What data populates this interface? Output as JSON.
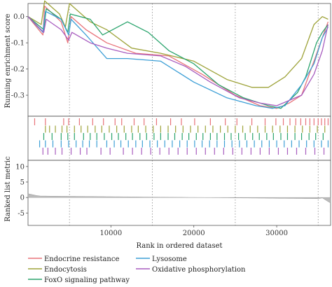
{
  "chart_data": {
    "type": "line",
    "x_range": [
      0,
      36500
    ],
    "grid": "vertical dotted lines at x = 5000, 15000, 25000, 35000",
    "legend_position": "bottom",
    "enrichment_panel": {
      "ylabel": "Running enrichment score",
      "ylim": [
        -0.38,
        0.05
      ],
      "yticks": [
        0.0,
        -0.1,
        -0.2,
        -0.3
      ],
      "ytick_labels": [
        "0.0",
        "-0.1",
        "-0.2",
        "-0.3"
      ]
    },
    "metric_panel": {
      "ylabel": "Ranked list metric",
      "ylim": [
        -9,
        12
      ],
      "yticks": [
        10,
        5,
        0,
        -5
      ],
      "ytick_labels": [
        "10",
        "5",
        "0",
        "-5"
      ]
    },
    "xaxis": {
      "xlabel": "Rank in ordered dataset",
      "xticks": [
        10000,
        20000,
        30000
      ],
      "xtick_labels": [
        "10000",
        "20000",
        "30000"
      ]
    },
    "series": [
      {
        "name": "Endocrine resistance",
        "color": "#e8737a",
        "points": [
          [
            0,
            0
          ],
          [
            1800,
            -0.07
          ],
          [
            2000,
            0.04
          ],
          [
            4000,
            -0.02
          ],
          [
            4800,
            -0.1
          ],
          [
            5200,
            0.0
          ],
          [
            7000,
            -0.05
          ],
          [
            9500,
            -0.1
          ],
          [
            13000,
            -0.14
          ],
          [
            17000,
            -0.15
          ],
          [
            21000,
            -0.22
          ],
          [
            25000,
            -0.3
          ],
          [
            28000,
            -0.34
          ],
          [
            30000,
            -0.35
          ],
          [
            31500,
            -0.33
          ],
          [
            33000,
            -0.3
          ],
          [
            34500,
            -0.17
          ],
          [
            35500,
            -0.08
          ],
          [
            36200,
            -0.02
          ]
        ],
        "hits": [
          800,
          2100,
          4300,
          4900,
          6200,
          7800,
          9100,
          10500,
          11300,
          12800,
          14000,
          15500,
          17200,
          18500,
          20100,
          22000,
          23800,
          25200,
          27000,
          28600,
          29900,
          30800,
          31600,
          32300,
          32900,
          33500,
          34000,
          34500,
          35000,
          35400,
          35800,
          36200
        ]
      },
      {
        "name": "Endocytosis",
        "color": "#9ea33a",
        "points": [
          [
            0,
            0
          ],
          [
            1600,
            -0.03
          ],
          [
            2000,
            0.06
          ],
          [
            3800,
            0.01
          ],
          [
            4500,
            -0.04
          ],
          [
            5000,
            0.05
          ],
          [
            7500,
            -0.02
          ],
          [
            9500,
            -0.05
          ],
          [
            12500,
            -0.12
          ],
          [
            16000,
            -0.14
          ],
          [
            20000,
            -0.17
          ],
          [
            24000,
            -0.24
          ],
          [
            27000,
            -0.27
          ],
          [
            29000,
            -0.27
          ],
          [
            31000,
            -0.23
          ],
          [
            33000,
            -0.16
          ],
          [
            34500,
            -0.03
          ],
          [
            35500,
            0.0
          ],
          [
            36200,
            -0.01
          ]
        ],
        "hits": [
          2100,
          2600,
          3300,
          4100,
          4700,
          5600,
          6400,
          7200,
          8100,
          8900,
          9800,
          10700,
          11600,
          12500,
          13300,
          14200,
          15100,
          16000,
          16900,
          17800,
          18700,
          19600,
          20500,
          21400,
          22300,
          23200,
          24100,
          25000,
          25900,
          26800,
          27700,
          28600,
          29500,
          30400,
          31300,
          32200,
          33100,
          34000,
          34900,
          35800
        ]
      },
      {
        "name": "FoxO signaling pathway",
        "color": "#2aa46d",
        "points": [
          [
            0,
            0
          ],
          [
            1900,
            -0.05
          ],
          [
            2200,
            0.03
          ],
          [
            4000,
            -0.01
          ],
          [
            4800,
            -0.06
          ],
          [
            5100,
            0.01
          ],
          [
            7500,
            -0.01
          ],
          [
            9000,
            -0.07
          ],
          [
            12000,
            -0.02
          ],
          [
            14500,
            -0.06
          ],
          [
            17000,
            -0.13
          ],
          [
            20000,
            -0.18
          ],
          [
            23000,
            -0.26
          ],
          [
            26000,
            -0.31
          ],
          [
            29000,
            -0.34
          ],
          [
            30500,
            -0.35
          ],
          [
            32500,
            -0.29
          ],
          [
            33500,
            -0.23
          ],
          [
            34800,
            -0.1
          ],
          [
            35500,
            -0.06
          ],
          [
            36200,
            -0.03
          ]
        ],
        "hits": [
          1900,
          2900,
          4000,
          4800,
          5600,
          6700,
          7500,
          8300,
          9200,
          10100,
          10900,
          11800,
          12600,
          13500,
          14300,
          15200,
          16000,
          16900,
          17700,
          18600,
          19400,
          20300,
          21100,
          22000,
          22800,
          23700,
          24500,
          25400,
          26200,
          27100,
          27900,
          28800,
          29600,
          30500,
          31300,
          32200,
          33000,
          33900,
          34700,
          35600
        ]
      },
      {
        "name": "Lysosome",
        "color": "#3d9fd6",
        "points": [
          [
            0,
            0
          ],
          [
            1800,
            -0.06
          ],
          [
            2100,
            0.02
          ],
          [
            4000,
            -0.01
          ],
          [
            4900,
            -0.07
          ],
          [
            5200,
            -0.01
          ],
          [
            7000,
            -0.07
          ],
          [
            9500,
            -0.16
          ],
          [
            12000,
            -0.16
          ],
          [
            16000,
            -0.17
          ],
          [
            20000,
            -0.25
          ],
          [
            24000,
            -0.31
          ],
          [
            27500,
            -0.34
          ],
          [
            29500,
            -0.35
          ],
          [
            31000,
            -0.34
          ],
          [
            33000,
            -0.26
          ],
          [
            34500,
            -0.18
          ],
          [
            35500,
            -0.08
          ],
          [
            36200,
            -0.04
          ]
        ],
        "hits": [
          1400,
          2100,
          3000,
          4000,
          4900,
          5800,
          6600,
          7400,
          8300,
          9500,
          10400,
          11200,
          12100,
          13000,
          13800,
          14700,
          15600,
          16500,
          17400,
          18300,
          19200,
          20100,
          21000,
          21900,
          22800,
          23700,
          24600,
          25500,
          26400,
          27300,
          28200,
          29100,
          30000,
          30900,
          31800,
          32700,
          33600,
          34500,
          35400,
          36200
        ]
      },
      {
        "name": "Oxidative phosphorylation",
        "color": "#a85dbf",
        "points": [
          [
            0,
            0
          ],
          [
            1900,
            -0.06
          ],
          [
            2200,
            -0.01
          ],
          [
            4000,
            -0.05
          ],
          [
            4900,
            -0.09
          ],
          [
            5300,
            -0.06
          ],
          [
            7500,
            -0.1
          ],
          [
            9500,
            -0.12
          ],
          [
            12000,
            -0.14
          ],
          [
            16000,
            -0.15
          ],
          [
            19000,
            -0.19
          ],
          [
            22000,
            -0.25
          ],
          [
            25500,
            -0.31
          ],
          [
            28000,
            -0.33
          ],
          [
            30000,
            -0.34
          ],
          [
            31500,
            -0.32
          ],
          [
            33000,
            -0.3
          ],
          [
            34500,
            -0.22
          ],
          [
            35500,
            -0.13
          ],
          [
            36200,
            -0.03
          ]
        ],
        "hits": [
          1800,
          2400,
          3300,
          4100,
          5200,
          6300,
          7100,
          8800,
          9900,
          11500,
          12600,
          13700,
          14800,
          15900,
          17000,
          18100,
          19200,
          20300,
          21400,
          22500,
          23600,
          24700,
          25800,
          26900,
          28000,
          29100,
          30200,
          31300,
          32400,
          33500,
          34600,
          35700
        ]
      }
    ]
  }
}
